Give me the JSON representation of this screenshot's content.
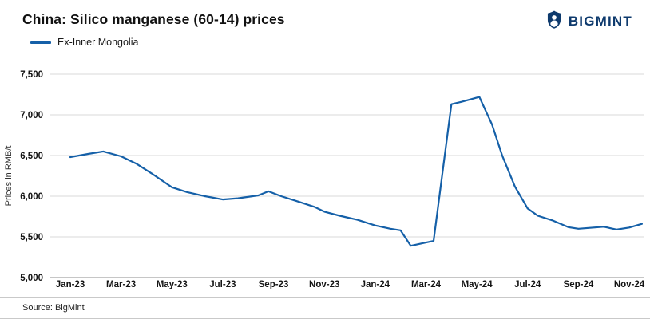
{
  "header": {
    "title": "China: Silico manganese (60-14) prices",
    "brand": "BIGMINT"
  },
  "legend": {
    "label": "Ex-Inner Mongolia"
  },
  "footer": {
    "source": "Source: BigMint"
  },
  "icons": {
    "brand": "person-shield-icon"
  },
  "colors": {
    "line": "#1560a8",
    "brand": "#0e3a6d",
    "grid": "#d9d9d9",
    "axis": "#8c8c8c"
  },
  "chart_data": {
    "type": "line",
    "title": "China: Silico manganese (60-14) prices",
    "xlabel": "",
    "ylabel": "Prices in RMB/t",
    "ylim": [
      5000,
      7500
    ],
    "ytick_step": 500,
    "yticks": [
      "5,000",
      "5,500",
      "6,000",
      "6,500",
      "7,000",
      "7,500"
    ],
    "xticklabels": [
      "Jan-23",
      "Mar-23",
      "May-23",
      "Jul-23",
      "Sep-23",
      "Nov-23",
      "Jan-24",
      "Mar-24",
      "May-24",
      "Jul-24",
      "Sep-24",
      "Nov-24"
    ],
    "xtick_positions": [
      0,
      2,
      4,
      6,
      8,
      10,
      12,
      14,
      16,
      18,
      20,
      22
    ],
    "grid": "horizontal",
    "legend_position": "top-left",
    "series": [
      {
        "name": "Ex-Inner Mongolia",
        "color": "#1560a8",
        "points": [
          [
            0,
            6480
          ],
          [
            0.7,
            6520
          ],
          [
            1.3,
            6550
          ],
          [
            2,
            6490
          ],
          [
            2.6,
            6400
          ],
          [
            3.2,
            6280
          ],
          [
            4,
            6110
          ],
          [
            4.6,
            6050
          ],
          [
            5.3,
            6000
          ],
          [
            6,
            5960
          ],
          [
            6.6,
            5975
          ],
          [
            7.4,
            6010
          ],
          [
            7.8,
            6060
          ],
          [
            8.3,
            6000
          ],
          [
            9,
            5930
          ],
          [
            9.6,
            5870
          ],
          [
            10,
            5810
          ],
          [
            10.6,
            5760
          ],
          [
            11.3,
            5710
          ],
          [
            12,
            5640
          ],
          [
            12.6,
            5600
          ],
          [
            13,
            5580
          ],
          [
            13.4,
            5390
          ],
          [
            14,
            5430
          ],
          [
            14.3,
            5450
          ],
          [
            15,
            7130
          ],
          [
            15.4,
            7160
          ],
          [
            16.1,
            7220
          ],
          [
            16.6,
            6880
          ],
          [
            17,
            6500
          ],
          [
            17.5,
            6120
          ],
          [
            18,
            5850
          ],
          [
            18.4,
            5760
          ],
          [
            19,
            5700
          ],
          [
            19.6,
            5620
          ],
          [
            20,
            5600
          ],
          [
            20.6,
            5615
          ],
          [
            21,
            5625
          ],
          [
            21.5,
            5590
          ],
          [
            22,
            5615
          ],
          [
            22.5,
            5660
          ]
        ]
      }
    ]
  }
}
